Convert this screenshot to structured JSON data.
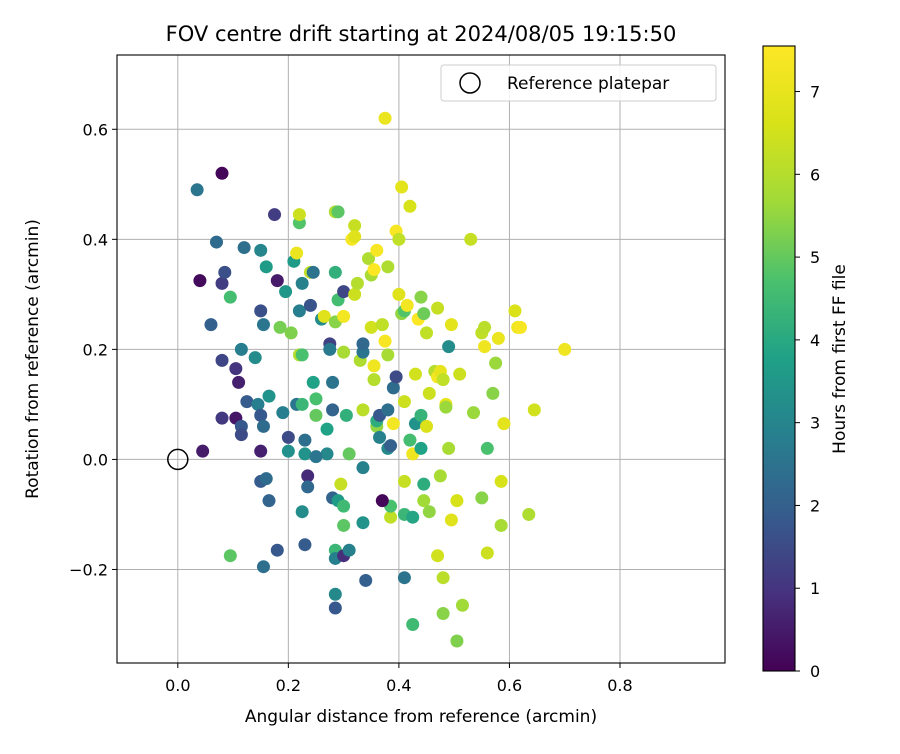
{
  "chart_data": {
    "type": "scatter",
    "title": "FOV centre drift starting at 2024/08/05 19:15:50",
    "xlabel": "Angular distance from reference (arcmin)",
    "ylabel": "Rotation from reference (arcmin)",
    "xlim": [
      -0.11,
      0.99
    ],
    "ylim": [
      -0.37,
      0.735
    ],
    "xticks": [
      "0.0",
      "0.2",
      "0.4",
      "0.6",
      "0.8"
    ],
    "xtick_values": [
      0.0,
      0.2,
      0.4,
      0.6,
      0.8
    ],
    "yticks": [
      "−0.2",
      "0.0",
      "0.2",
      "0.4",
      "0.6"
    ],
    "ytick_values": [
      -0.2,
      0.0,
      0.2,
      0.4,
      0.6
    ],
    "grid": true,
    "legend": {
      "location": "upper right",
      "entries": [
        "Reference platepar"
      ]
    },
    "reference_point": {
      "name": "Reference platepar",
      "x": 0.0,
      "y": 0.0
    },
    "colorbar": {
      "label": "Hours from first FF file",
      "range": [
        0,
        7.55
      ],
      "colormap": "viridis",
      "ticks": [
        "0",
        "1",
        "2",
        "3",
        "4",
        "5",
        "6",
        "7"
      ],
      "tick_values": [
        0,
        1,
        2,
        3,
        4,
        5,
        6,
        7
      ]
    },
    "points_columns": [
      "x",
      "y",
      "hours"
    ],
    "points": [
      [
        0.08,
        0.52,
        0.1
      ],
      [
        0.035,
        0.49,
        2.6
      ],
      [
        0.04,
        0.325,
        0.2
      ],
      [
        0.07,
        0.395,
        2.3
      ],
      [
        0.08,
        0.32,
        1.2
      ],
      [
        0.085,
        0.34,
        1.6
      ],
      [
        0.095,
        0.295,
        4.6
      ],
      [
        0.06,
        0.245,
        2.0
      ],
      [
        0.08,
        0.18,
        1.4
      ],
      [
        0.105,
        0.165,
        1.0
      ],
      [
        0.11,
        0.14,
        0.6
      ],
      [
        0.115,
        0.2,
        2.8
      ],
      [
        0.12,
        0.385,
        2.4
      ],
      [
        0.125,
        0.105,
        1.9
      ],
      [
        0.08,
        0.075,
        1.1
      ],
      [
        0.105,
        0.075,
        0.4
      ],
      [
        0.115,
        0.06,
        1.8
      ],
      [
        0.115,
        0.045,
        1.5
      ],
      [
        0.045,
        0.015,
        0.5
      ],
      [
        0.095,
        -0.175,
        4.9
      ],
      [
        0.14,
        0.185,
        3.2
      ],
      [
        0.145,
        0.1,
        2.8
      ],
      [
        0.15,
        0.08,
        1.8
      ],
      [
        0.15,
        0.27,
        1.6
      ],
      [
        0.15,
        0.38,
        3.0
      ],
      [
        0.155,
        0.06,
        2.3
      ],
      [
        0.155,
        0.245,
        2.6
      ],
      [
        0.16,
        0.35,
        3.6
      ],
      [
        0.165,
        0.115,
        3.4
      ],
      [
        0.15,
        0.015,
        0.6
      ],
      [
        0.15,
        -0.04,
        1.9
      ],
      [
        0.16,
        -0.035,
        2.3
      ],
      [
        0.165,
        -0.075,
        2.1
      ],
      [
        0.155,
        -0.195,
        2.4
      ],
      [
        0.18,
        -0.165,
        1.8
      ],
      [
        0.175,
        0.445,
        1.2
      ],
      [
        0.18,
        0.325,
        0.5
      ],
      [
        0.185,
        0.24,
        5.2
      ],
      [
        0.195,
        0.305,
        3.5
      ],
      [
        0.19,
        0.085,
        2.8
      ],
      [
        0.205,
        0.23,
        5.3
      ],
      [
        0.2,
        0.04,
        1.5
      ],
      [
        0.21,
        0.36,
        3.6
      ],
      [
        0.215,
        0.375,
        7.1
      ],
      [
        0.215,
        0.1,
        2.6
      ],
      [
        0.22,
        0.43,
        4.8
      ],
      [
        0.22,
        0.445,
        6.4
      ],
      [
        0.22,
        0.27,
        2.8
      ],
      [
        0.225,
        0.32,
        2.9
      ],
      [
        0.22,
        0.19,
        6.0
      ],
      [
        0.225,
        0.19,
        4.7
      ],
      [
        0.225,
        0.1,
        4.4
      ],
      [
        0.23,
        0.035,
        2.4
      ],
      [
        0.23,
        0.01,
        3.4
      ],
      [
        0.235,
        -0.03,
        0.8
      ],
      [
        0.235,
        -0.05,
        2.2
      ],
      [
        0.225,
        -0.095,
        3.2
      ],
      [
        0.23,
        -0.155,
        1.9
      ],
      [
        0.24,
        0.34,
        6.2
      ],
      [
        0.24,
        0.28,
        1.7
      ],
      [
        0.245,
        0.34,
        2.5
      ],
      [
        0.245,
        0.14,
        3.8
      ],
      [
        0.25,
        0.08,
        5.0
      ],
      [
        0.25,
        0.11,
        4.7
      ],
      [
        0.26,
        0.255,
        3.2
      ],
      [
        0.265,
        0.26,
        6.8
      ],
      [
        0.27,
        0.055,
        3.8
      ],
      [
        0.27,
        0.01,
        3.1
      ],
      [
        0.275,
        0.21,
        1.3
      ],
      [
        0.275,
        0.2,
        2.7
      ],
      [
        0.28,
        0.09,
        2.1
      ],
      [
        0.28,
        0.14,
        2.5
      ],
      [
        0.285,
        0.25,
        5.4
      ],
      [
        0.285,
        0.34,
        4.2
      ],
      [
        0.285,
        0.45,
        5.9
      ],
      [
        0.29,
        0.45,
        4.9
      ],
      [
        0.29,
        0.29,
        4.6
      ],
      [
        0.3,
        0.305,
        1.4
      ],
      [
        0.3,
        0.26,
        7.3
      ],
      [
        0.3,
        0.195,
        5.8
      ],
      [
        0.28,
        -0.07,
        2.1
      ],
      [
        0.285,
        -0.165,
        4.4
      ],
      [
        0.285,
        -0.18,
        2.9
      ],
      [
        0.285,
        -0.245,
        3.1
      ],
      [
        0.285,
        -0.27,
        1.8
      ],
      [
        0.29,
        -0.075,
        3.6
      ],
      [
        0.295,
        -0.045,
        6.3
      ],
      [
        0.3,
        -0.085,
        4.5
      ],
      [
        0.3,
        -0.12,
        4.9
      ],
      [
        0.3,
        -0.175,
        0.9
      ],
      [
        0.31,
        -0.165,
        2.9
      ],
      [
        0.305,
        0.08,
        4.2
      ],
      [
        0.31,
        0.01,
        5.0
      ],
      [
        0.315,
        0.4,
        7.4
      ],
      [
        0.32,
        0.425,
        6.3
      ],
      [
        0.32,
        0.405,
        6.8
      ],
      [
        0.32,
        0.3,
        6.4
      ],
      [
        0.325,
        0.32,
        6.0
      ],
      [
        0.33,
        0.18,
        5.9
      ],
      [
        0.335,
        0.195,
        2.6
      ],
      [
        0.335,
        0.21,
        2.2
      ],
      [
        0.335,
        0.09,
        6.1
      ],
      [
        0.335,
        -0.015,
        2.9
      ],
      [
        0.335,
        -0.115,
        3.4
      ],
      [
        0.34,
        -0.22,
        2.0
      ],
      [
        0.345,
        0.365,
        5.9
      ],
      [
        0.35,
        0.24,
        6.5
      ],
      [
        0.35,
        0.335,
        5.8
      ],
      [
        0.355,
        0.17,
        7.2
      ],
      [
        0.355,
        0.345,
        7.5
      ],
      [
        0.355,
        0.145,
        6.0
      ],
      [
        0.36,
        0.38,
        7.4
      ],
      [
        0.36,
        0.06,
        5.5
      ],
      [
        0.36,
        0.07,
        4.1
      ],
      [
        0.365,
        0.08,
        1.8
      ],
      [
        0.365,
        0.04,
        2.9
      ],
      [
        0.37,
        0.245,
        6.2
      ],
      [
        0.375,
        0.62,
        7.1
      ],
      [
        0.375,
        0.215,
        7.4
      ],
      [
        0.38,
        0.35,
        5.9
      ],
      [
        0.38,
        0.19,
        5.8
      ],
      [
        0.38,
        0.09,
        2.4
      ],
      [
        0.38,
        0.02,
        3.1
      ],
      [
        0.385,
        0.025,
        2.0
      ],
      [
        0.385,
        -0.105,
        6.2
      ],
      [
        0.385,
        -0.085,
        4.7
      ],
      [
        0.39,
        0.065,
        7.3
      ],
      [
        0.39,
        0.13,
        2.3
      ],
      [
        0.395,
        0.15,
        1.5
      ],
      [
        0.395,
        0.415,
        7.4
      ],
      [
        0.4,
        0.4,
        6.2
      ],
      [
        0.4,
        0.3,
        6.8
      ],
      [
        0.405,
        0.495,
        6.9
      ],
      [
        0.405,
        0.265,
        5.5
      ],
      [
        0.41,
        0.27,
        4.8
      ],
      [
        0.41,
        0.105,
        6.4
      ],
      [
        0.41,
        -0.04,
        6.3
      ],
      [
        0.41,
        -0.1,
        4.4
      ],
      [
        0.41,
        -0.215,
        2.5
      ],
      [
        0.415,
        0.28,
        7.3
      ],
      [
        0.42,
        0.46,
        6.6
      ],
      [
        0.42,
        0.035,
        4.6
      ],
      [
        0.425,
        0.01,
        7.2
      ],
      [
        0.425,
        -0.105,
        3.9
      ],
      [
        0.425,
        -0.3,
        4.5
      ],
      [
        0.43,
        0.155,
        6.5
      ],
      [
        0.43,
        0.065,
        3.4
      ],
      [
        0.435,
        0.255,
        7.5
      ],
      [
        0.44,
        0.295,
        5.4
      ],
      [
        0.44,
        0.08,
        4.3
      ],
      [
        0.44,
        0.02,
        3.8
      ],
      [
        0.445,
        -0.045,
        4.1
      ],
      [
        0.445,
        -0.075,
        5.7
      ],
      [
        0.445,
        0.265,
        5.1
      ],
      [
        0.45,
        0.23,
        6.2
      ],
      [
        0.45,
        0.06,
        6.7
      ],
      [
        0.455,
        0.12,
        6.4
      ],
      [
        0.455,
        -0.095,
        5.5
      ],
      [
        0.465,
        0.16,
        6.0
      ],
      [
        0.47,
        0.15,
        7.3
      ],
      [
        0.47,
        0.275,
        6.3
      ],
      [
        0.47,
        -0.175,
        6.5
      ],
      [
        0.475,
        0.16,
        7.0
      ],
      [
        0.475,
        -0.03,
        5.8
      ],
      [
        0.48,
        0.145,
        6.2
      ],
      [
        0.48,
        -0.215,
        6.1
      ],
      [
        0.48,
        -0.28,
        5.4
      ],
      [
        0.485,
        0.1,
        7.0
      ],
      [
        0.485,
        0.095,
        5.6
      ],
      [
        0.49,
        0.02,
        5.8
      ],
      [
        0.495,
        -0.11,
        6.8
      ],
      [
        0.495,
        0.245,
        6.9
      ],
      [
        0.49,
        0.205,
        3.2
      ],
      [
        0.505,
        -0.075,
        6.6
      ],
      [
        0.505,
        -0.33,
        5.3
      ],
      [
        0.51,
        0.155,
        6.4
      ],
      [
        0.515,
        -0.265,
        5.7
      ],
      [
        0.53,
        0.4,
        6.3
      ],
      [
        0.535,
        0.085,
        5.6
      ],
      [
        0.55,
        0.23,
        6.2
      ],
      [
        0.55,
        -0.07,
        5.4
      ],
      [
        0.555,
        0.24,
        6.1
      ],
      [
        0.555,
        0.205,
        7.2
      ],
      [
        0.56,
        -0.17,
        6.4
      ],
      [
        0.56,
        0.02,
        4.7
      ],
      [
        0.57,
        0.12,
        5.4
      ],
      [
        0.575,
        0.175,
        5.6
      ],
      [
        0.58,
        0.22,
        7.1
      ],
      [
        0.585,
        -0.12,
        5.8
      ],
      [
        0.585,
        -0.04,
        6.6
      ],
      [
        0.59,
        0.065,
        6.9
      ],
      [
        0.61,
        0.27,
        6.7
      ],
      [
        0.615,
        0.24,
        7.2
      ],
      [
        0.62,
        0.24,
        7.4
      ],
      [
        0.635,
        -0.1,
        5.9
      ],
      [
        0.645,
        0.09,
        6.5
      ],
      [
        0.7,
        0.2,
        7.2
      ],
      [
        0.37,
        -0.075,
        0.1
      ],
      [
        0.25,
        0.005,
        2.6
      ],
      [
        0.2,
        0.015,
        3.3
      ]
    ]
  }
}
